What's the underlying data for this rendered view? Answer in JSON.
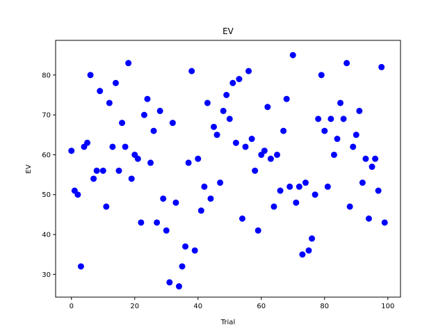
{
  "chart_data": {
    "type": "scatter",
    "title": "EV",
    "xlabel": "Trial",
    "ylabel": "EV",
    "xlim": [
      -5,
      104
    ],
    "ylim": [
      24.3,
      88.7
    ],
    "xticks": [
      0,
      20,
      40,
      60,
      80,
      100
    ],
    "yticks": [
      30,
      40,
      50,
      60,
      70,
      80
    ],
    "grid": false,
    "marker_color": "#0000ff",
    "series": [
      {
        "x": [
          0,
          1,
          2,
          3,
          4,
          5,
          6,
          7,
          8,
          9,
          10,
          11,
          12,
          13,
          14,
          15,
          16,
          17,
          18,
          19,
          20,
          21,
          22,
          23,
          24,
          25,
          26,
          27,
          28,
          29,
          30,
          31,
          32,
          33,
          34,
          35,
          36,
          37,
          38,
          39,
          40,
          41,
          42,
          43,
          44,
          45,
          46,
          47,
          48,
          49,
          50,
          51,
          52,
          53,
          54,
          55,
          56,
          57,
          58,
          59,
          60,
          61,
          62,
          63,
          64,
          65,
          66,
          67,
          68,
          69,
          70,
          71,
          72,
          73,
          74,
          75,
          76,
          77,
          78,
          79,
          80,
          81,
          82,
          83,
          84,
          85,
          86,
          87,
          88,
          89,
          90,
          91,
          92,
          93,
          94,
          95,
          96,
          97,
          98,
          99
        ],
        "y": [
          61,
          51,
          50,
          32,
          62,
          63,
          80,
          54,
          56,
          76,
          56,
          47,
          73,
          62,
          78,
          56,
          68,
          62,
          83,
          54,
          60,
          59,
          43,
          70,
          74,
          58,
          66,
          43,
          71,
          49,
          41,
          28,
          68,
          48,
          27,
          32,
          37,
          58,
          81,
          36,
          59,
          46,
          52,
          73,
          49,
          67,
          65,
          53,
          71,
          75,
          69,
          78,
          63,
          79,
          44,
          62,
          81,
          64,
          56,
          41,
          60,
          61,
          72,
          59,
          47,
          60,
          51,
          66,
          74,
          52,
          85,
          48,
          52,
          35,
          53,
          36,
          39,
          50,
          69,
          80,
          66,
          52,
          69,
          60,
          64,
          73,
          69,
          83,
          47,
          62,
          65,
          71,
          53,
          59,
          44,
          57,
          59,
          51,
          82,
          43
        ]
      }
    ]
  }
}
